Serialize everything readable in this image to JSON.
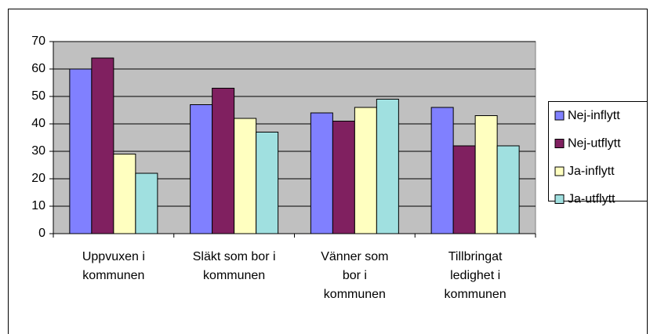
{
  "chart_data": {
    "type": "bar",
    "categories": [
      "Uppvuxen i\nkommunen",
      "Släkt som bor i\nkommunen",
      "Vänner som\nbor i\nkommunen",
      "Tillbringat\nledighet i\nkommunen"
    ],
    "series": [
      {
        "name": "Nej-inflytt",
        "color": "#8080ff",
        "values": [
          60,
          47,
          44,
          46
        ]
      },
      {
        "name": "Nej-utflytt",
        "color": "#802060",
        "values": [
          64,
          53,
          41,
          32
        ]
      },
      {
        "name": "Ja-inflytt",
        "color": "#ffffc0",
        "values": [
          29,
          42,
          46,
          43
        ]
      },
      {
        "name": "Ja-utflytt",
        "color": "#a0e0e0",
        "values": [
          22,
          37,
          49,
          32
        ]
      }
    ],
    "ylim": [
      0,
      70
    ],
    "yticks": [
      0,
      10,
      20,
      30,
      40,
      50,
      60,
      70
    ],
    "legend": "right"
  }
}
